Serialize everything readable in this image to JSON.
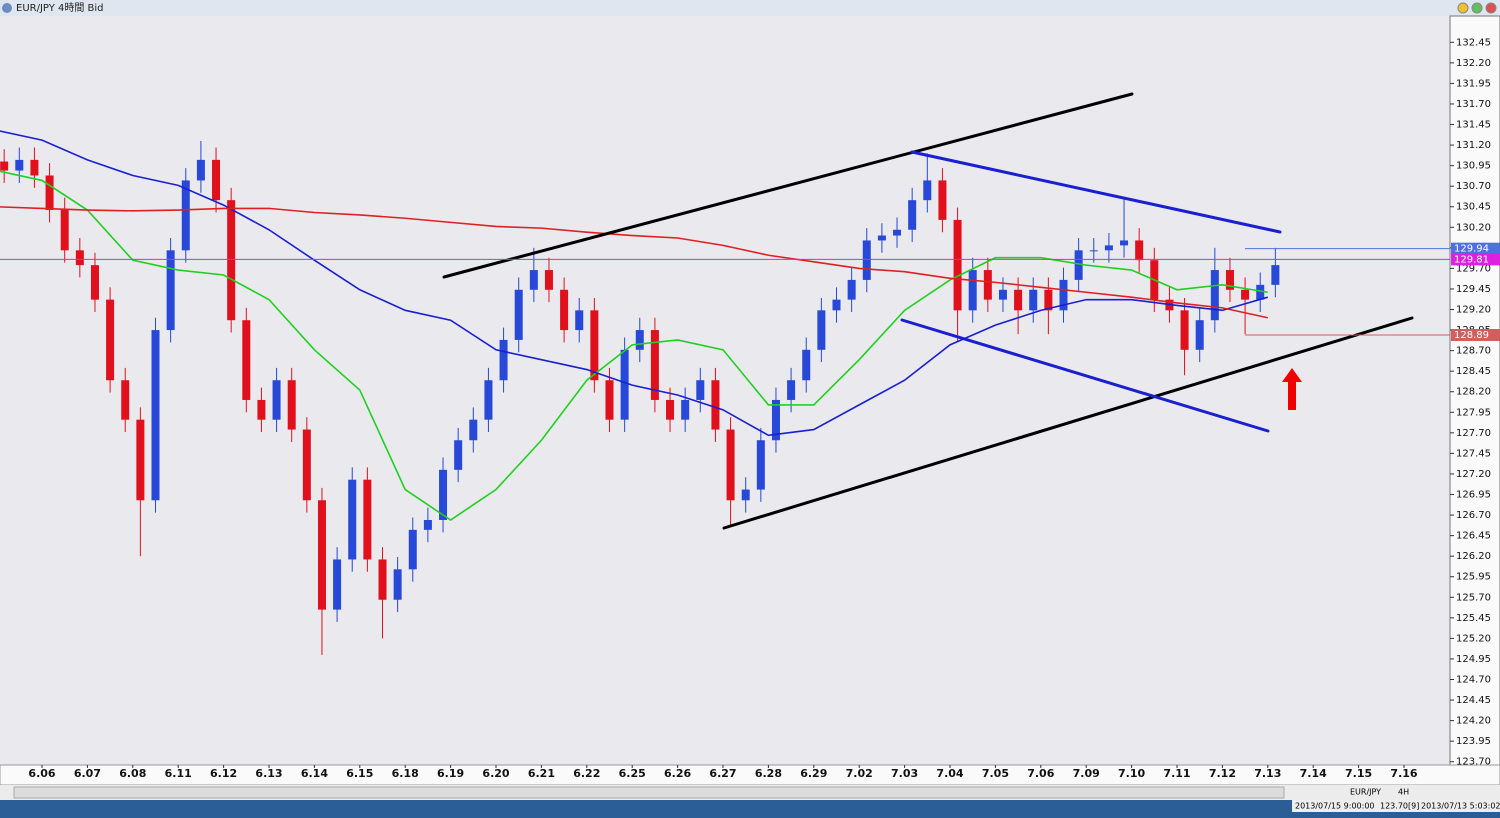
{
  "window_title": "EUR/JPY 4時間 Bid",
  "chart_data": {
    "type": "candlestick",
    "categories": [
      null,
      "6.06",
      "6.07",
      "6.08",
      "6.11",
      "6.12",
      "6.13",
      "6.14",
      "6.15",
      "6.18",
      "6.19",
      "6.20",
      "6.21",
      "6.22",
      "6.25",
      "6.26",
      "6.27",
      "6.28",
      "6.29",
      "7.02",
      "7.03",
      "7.04",
      "7.05",
      "7.06",
      "7.09",
      "7.10",
      "7.11",
      "7.12",
      "7.13",
      "7.14",
      "7.15",
      "7.16"
    ],
    "candles": [
      [
        131.0,
        131.15,
        130.74,
        130.89
      ],
      [
        130.89,
        131.17,
        130.74,
        131.02
      ],
      [
        131.02,
        131.17,
        130.68,
        130.83
      ],
      [
        130.83,
        130.98,
        130.26,
        130.41
      ],
      [
        130.41,
        130.56,
        129.77,
        129.92
      ],
      [
        129.92,
        130.07,
        129.59,
        129.74
      ],
      [
        129.74,
        129.89,
        129.17,
        129.32
      ],
      [
        129.32,
        129.47,
        128.19,
        128.34
      ],
      [
        128.34,
        128.49,
        127.71,
        127.86
      ],
      [
        127.86,
        128.01,
        126.2,
        126.88
      ],
      [
        126.88,
        129.1,
        126.73,
        128.95
      ],
      [
        128.95,
        130.07,
        128.8,
        129.92
      ],
      [
        129.92,
        130.92,
        129.77,
        130.77
      ],
      [
        130.77,
        131.25,
        130.62,
        131.02
      ],
      [
        131.02,
        131.17,
        130.38,
        130.53
      ],
      [
        130.53,
        130.68,
        128.92,
        129.07
      ],
      [
        129.07,
        129.22,
        127.95,
        128.1
      ],
      [
        128.1,
        128.25,
        127.71,
        127.86
      ],
      [
        127.86,
        128.49,
        127.71,
        128.34
      ],
      [
        128.34,
        128.49,
        127.59,
        127.74
      ],
      [
        127.74,
        127.89,
        126.73,
        126.88
      ],
      [
        126.88,
        127.03,
        125.0,
        125.55
      ],
      [
        125.55,
        126.31,
        125.4,
        126.16
      ],
      [
        126.16,
        127.28,
        126.01,
        127.13
      ],
      [
        127.13,
        127.28,
        126.01,
        126.16
      ],
      [
        126.16,
        126.31,
        125.2,
        125.67
      ],
      [
        125.67,
        126.19,
        125.52,
        126.04
      ],
      [
        126.04,
        126.67,
        125.89,
        126.52
      ],
      [
        126.52,
        126.79,
        126.37,
        126.64
      ],
      [
        126.64,
        127.4,
        126.49,
        127.25
      ],
      [
        127.25,
        127.76,
        127.1,
        127.61
      ],
      [
        127.61,
        128.01,
        127.46,
        127.86
      ],
      [
        127.86,
        128.49,
        127.71,
        128.34
      ],
      [
        128.34,
        128.98,
        128.19,
        128.83
      ],
      [
        128.83,
        129.59,
        128.68,
        129.44
      ],
      [
        129.44,
        129.95,
        129.29,
        129.68
      ],
      [
        129.68,
        129.83,
        129.29,
        129.44
      ],
      [
        129.44,
        129.59,
        128.8,
        128.95
      ],
      [
        128.95,
        129.34,
        128.8,
        129.19
      ],
      [
        129.19,
        129.34,
        128.19,
        128.34
      ],
      [
        128.34,
        128.49,
        127.71,
        127.86
      ],
      [
        127.86,
        128.86,
        127.71,
        128.71
      ],
      [
        128.71,
        129.1,
        128.56,
        128.95
      ],
      [
        128.95,
        129.1,
        127.95,
        128.1
      ],
      [
        128.1,
        128.25,
        127.71,
        127.86
      ],
      [
        127.86,
        128.25,
        127.71,
        128.1
      ],
      [
        128.1,
        128.49,
        127.95,
        128.34
      ],
      [
        128.34,
        128.49,
        127.59,
        127.74
      ],
      [
        127.74,
        127.89,
        126.55,
        126.88
      ],
      [
        126.88,
        127.16,
        126.73,
        127.01
      ],
      [
        127.01,
        127.76,
        126.86,
        127.61
      ],
      [
        127.61,
        128.25,
        127.46,
        128.1
      ],
      [
        128.1,
        128.49,
        127.95,
        128.34
      ],
      [
        128.34,
        128.86,
        128.19,
        128.71
      ],
      [
        128.71,
        129.34,
        128.56,
        129.19
      ],
      [
        129.19,
        129.47,
        129.04,
        129.32
      ],
      [
        129.32,
        129.71,
        129.17,
        129.56
      ],
      [
        129.56,
        130.19,
        129.41,
        130.04
      ],
      [
        130.04,
        130.25,
        129.89,
        130.1
      ],
      [
        130.1,
        130.32,
        129.95,
        130.17
      ],
      [
        130.17,
        130.68,
        130.02,
        130.53
      ],
      [
        130.53,
        131.1,
        130.38,
        130.77
      ],
      [
        130.77,
        130.92,
        130.14,
        130.29
      ],
      [
        130.29,
        130.44,
        128.8,
        129.19
      ],
      [
        129.19,
        129.83,
        129.04,
        129.68
      ],
      [
        129.68,
        129.83,
        129.17,
        129.32
      ],
      [
        129.32,
        129.59,
        129.17,
        129.44
      ],
      [
        129.44,
        129.59,
        128.9,
        129.19
      ],
      [
        129.19,
        129.59,
        129.04,
        129.44
      ],
      [
        129.44,
        129.59,
        128.9,
        129.19
      ],
      [
        129.19,
        129.71,
        129.04,
        129.56
      ],
      [
        129.56,
        130.07,
        129.41,
        129.92
      ],
      [
        129.92,
        130.07,
        129.77,
        129.92
      ],
      [
        129.92,
        130.13,
        129.77,
        129.98
      ],
      [
        129.98,
        130.55,
        129.83,
        130.04
      ],
      [
        130.04,
        130.19,
        129.65,
        129.8
      ],
      [
        129.8,
        129.95,
        129.17,
        129.32
      ],
      [
        129.32,
        129.47,
        129.04,
        129.19
      ],
      [
        129.19,
        129.34,
        128.4,
        128.71
      ],
      [
        128.71,
        129.22,
        128.56,
        129.07
      ],
      [
        129.07,
        129.95,
        128.92,
        129.68
      ],
      [
        129.68,
        129.83,
        129.29,
        129.44
      ],
      [
        129.44,
        129.59,
        128.9,
        129.32
      ],
      [
        129.32,
        129.65,
        129.17,
        129.5
      ],
      [
        129.5,
        129.95,
        129.35,
        129.74
      ]
    ],
    "up_color": "#2848d8",
    "down_color": "#e0101c",
    "series": [
      {
        "color": "#20d020",
        "values": [
          130.89,
          130.77,
          130.41,
          129.8,
          129.68,
          129.62,
          129.32,
          128.71,
          128.22,
          127.01,
          126.64,
          127.01,
          127.61,
          128.34,
          128.77,
          128.83,
          128.71,
          128.04,
          128.04,
          128.59,
          129.19,
          129.56,
          129.83,
          129.83,
          129.74,
          129.68,
          129.44,
          129.5,
          129.41,
          null,
          null,
          null
        ]
      },
      {
        "color": "#1a20d0",
        "values": [
          131.38,
          131.26,
          131.02,
          130.83,
          130.71,
          130.47,
          130.17,
          129.8,
          129.44,
          129.19,
          129.07,
          128.71,
          128.59,
          128.47,
          128.28,
          128.16,
          127.98,
          127.67,
          127.74,
          128.04,
          128.34,
          128.77,
          129.01,
          129.19,
          129.32,
          129.32,
          129.25,
          129.19,
          129.35,
          null,
          null,
          null
        ]
      },
      {
        "color": "#e02020",
        "values": [
          130.45,
          130.43,
          130.41,
          130.4,
          130.41,
          130.43,
          130.43,
          130.38,
          130.35,
          130.31,
          130.26,
          130.21,
          130.19,
          130.14,
          130.1,
          130.07,
          129.98,
          129.86,
          129.78,
          129.7,
          129.66,
          129.58,
          129.53,
          129.47,
          129.41,
          129.35,
          129.28,
          129.22,
          129.1,
          null,
          null,
          null
        ]
      }
    ],
    "price_lines": [
      {
        "value": 129.94,
        "color": "#5070e0"
      },
      {
        "value": 129.81,
        "color": "#e020e0"
      },
      {
        "value": 128.89,
        "color": "#d06060"
      }
    ],
    "ylim": [
      123.66,
      132.77
    ],
    "yticks": [
      132.45,
      {
        "value": 132.2,
        "label": "132.20"
      },
      131.95,
      {
        "value": 131.7,
        "label": "131.70"
      },
      131.45,
      {
        "value": 131.2,
        "label": "131.20"
      },
      130.95,
      {
        "value": 130.7,
        "label": "130.70"
      },
      130.45,
      {
        "value": 130.2,
        "label": "130.20"
      },
      129.95,
      {
        "value": 129.7,
        "label": "129.70"
      },
      129.45,
      {
        "value": 129.2,
        "label": "129.20"
      },
      128.95,
      {
        "value": 128.7,
        "label": "128.70"
      },
      128.45,
      {
        "value": 128.2,
        "label": "128.20"
      },
      127.95,
      {
        "value": 127.7,
        "label": "127.70"
      },
      127.45,
      {
        "value": 127.2,
        "label": "127.20"
      },
      126.95,
      {
        "value": 126.7,
        "label": "126.70"
      },
      126.45,
      {
        "value": 126.2,
        "label": "126.20"
      },
      125.95,
      {
        "value": 125.7,
        "label": "125.70"
      },
      125.45,
      {
        "value": 125.2,
        "label": "125.20"
      },
      124.95,
      {
        "value": 124.7,
        "label": "124.70"
      },
      124.45,
      {
        "value": 124.2,
        "label": "124.20"
      },
      123.95,
      {
        "value": 123.7,
        "label": "123.70"
      }
    ]
  },
  "status": {
    "symbol": "EUR/JPY",
    "period": "4H",
    "cursor_time": "2013/07/15 9:00:00",
    "cursor_price": "123.70[9]",
    "clock": "2013/07/13 5:03:02"
  }
}
